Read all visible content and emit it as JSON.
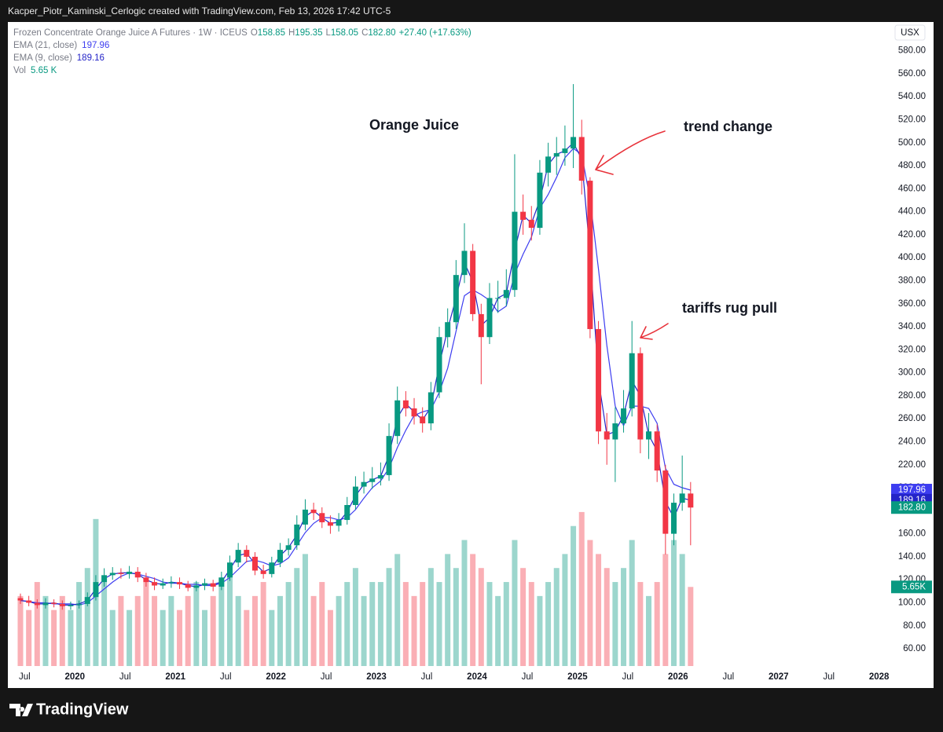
{
  "page": {
    "caption": "Kacper_Piotr_Kaminski_Cerlogic created with TradingView.com, Feb 13, 2026 17:42 UTC-5",
    "brand": "TradingView"
  },
  "chart_data": {
    "type": "candlestick",
    "title": "Frozen Concentrate Orange Juice A Futures · 1W · ICEUS",
    "legend_ohlc": [
      {
        "key": "O",
        "value": "158.85"
      },
      {
        "key": "H",
        "value": "195.35"
      },
      {
        "key": "L",
        "value": "158.05"
      },
      {
        "key": "C",
        "value": "182.80"
      }
    ],
    "change": "+27.40 (+17.63%)",
    "currency": "USX",
    "annotations": [
      "Orange Juice",
      "trend change",
      "tariffs rug pull"
    ],
    "up_color": "#089981",
    "down_color": "#f23645",
    "grid": false,
    "x": [
      "2019-06",
      "2019-07",
      "2019-08",
      "2019-09",
      "2019-10",
      "2019-11",
      "2019-12",
      "2020-01",
      "2020-02",
      "2020-03",
      "2020-04",
      "2020-05",
      "2020-06",
      "2020-07",
      "2020-08",
      "2020-09",
      "2020-10",
      "2020-11",
      "2020-12",
      "2021-01",
      "2021-02",
      "2021-03",
      "2021-04",
      "2021-05",
      "2021-06",
      "2021-07",
      "2021-08",
      "2021-09",
      "2021-10",
      "2021-11",
      "2021-12",
      "2022-01",
      "2022-02",
      "2022-03",
      "2022-04",
      "2022-05",
      "2022-06",
      "2022-07",
      "2022-08",
      "2022-09",
      "2022-10",
      "2022-11",
      "2022-12",
      "2023-01",
      "2023-02",
      "2023-03",
      "2023-04",
      "2023-05",
      "2023-06",
      "2023-07",
      "2023-08",
      "2023-09",
      "2023-10",
      "2023-11",
      "2023-12",
      "2024-01",
      "2024-02",
      "2024-03",
      "2024-04",
      "2024-05",
      "2024-06",
      "2024-07",
      "2024-08",
      "2024-09",
      "2024-10",
      "2024-11",
      "2024-12",
      "2025-01",
      "2025-02",
      "2025-03",
      "2025-04",
      "2025-05",
      "2025-06",
      "2025-07",
      "2025-08",
      "2025-09",
      "2025-10",
      "2025-11",
      "2025-12",
      "2026-01",
      "2026-02"
    ],
    "open": [
      104,
      102,
      100,
      98,
      100,
      99,
      97,
      98,
      99,
      105,
      118,
      124,
      126,
      125,
      127,
      122,
      118,
      115,
      117,
      118,
      116,
      113,
      115,
      117,
      114,
      122,
      135,
      146,
      140,
      128,
      125,
      135,
      146,
      150,
      168,
      181,
      178,
      170,
      167,
      172,
      185,
      201,
      205,
      208,
      211,
      245,
      276,
      269,
      262,
      256,
      283,
      331,
      344,
      385,
      406,
      351,
      331,
      365,
      365,
      372,
      440,
      433,
      426,
      474,
      488,
      491,
      495,
      505,
      467,
      338,
      249,
      242,
      256,
      269,
      317,
      242,
      249,
      215,
      160,
      187,
      195
    ],
    "high": [
      108,
      106,
      103,
      104,
      103,
      102,
      101,
      102,
      109,
      124,
      130,
      131,
      130,
      132,
      131,
      126,
      122,
      121,
      123,
      122,
      119,
      119,
      121,
      120,
      127,
      141,
      152,
      150,
      144,
      133,
      140,
      152,
      156,
      176,
      190,
      187,
      183,
      176,
      178,
      192,
      210,
      214,
      218,
      222,
      256,
      288,
      284,
      278,
      270,
      292,
      340,
      356,
      398,
      430,
      412,
      360,
      378,
      380,
      390,
      490,
      455,
      445,
      485,
      500,
      505,
      515,
      551,
      520,
      470,
      345,
      265,
      270,
      285,
      345,
      322,
      265,
      255,
      220,
      195,
      228,
      205
    ],
    "low": [
      99,
      97,
      95,
      95,
      96,
      94,
      94,
      95,
      97,
      102,
      114,
      120,
      121,
      121,
      118,
      114,
      111,
      112,
      113,
      112,
      110,
      110,
      111,
      110,
      111,
      119,
      131,
      135,
      124,
      121,
      122,
      131,
      141,
      146,
      163,
      172,
      165,
      160,
      162,
      168,
      181,
      195,
      199,
      202,
      206,
      238,
      262,
      255,
      248,
      250,
      278,
      322,
      338,
      378,
      345,
      290,
      325,
      352,
      358,
      366,
      420,
      415,
      420,
      462,
      472,
      480,
      478,
      455,
      330,
      238,
      220,
      205,
      248,
      262,
      230,
      225,
      205,
      142,
      150,
      180,
      150
    ],
    "close": [
      102,
      100,
      98,
      100,
      99,
      97,
      98,
      99,
      105,
      118,
      124,
      126,
      125,
      127,
      122,
      118,
      115,
      117,
      118,
      116,
      113,
      115,
      117,
      114,
      122,
      135,
      146,
      140,
      128,
      125,
      135,
      146,
      150,
      168,
      181,
      178,
      170,
      167,
      172,
      185,
      201,
      205,
      208,
      211,
      245,
      276,
      269,
      262,
      256,
      283,
      331,
      344,
      385,
      406,
      351,
      331,
      365,
      365,
      372,
      440,
      433,
      426,
      474,
      488,
      491,
      495,
      505,
      467,
      338,
      249,
      242,
      256,
      269,
      317,
      242,
      249,
      215,
      160,
      187,
      195,
      182.8
    ],
    "close_label": "182.80",
    "series": [
      {
        "name": "EMA (21, close)",
        "color": "#3d3df0",
        "values": [
          102,
          101,
          100,
          100,
          99,
          99,
          99,
          98,
          100,
          106,
          112,
          118,
          123,
          126,
          125,
          123,
          121,
          118,
          117,
          117,
          116,
          116,
          115,
          115,
          117,
          122,
          129,
          136,
          137,
          135,
          132,
          134,
          139,
          150,
          161,
          169,
          174,
          174,
          172,
          174,
          181,
          191,
          200,
          206,
          217,
          235,
          250,
          263,
          266,
          268,
          283,
          304,
          336,
          367,
          372,
          368,
          363,
          353,
          358,
          386,
          403,
          418,
          443,
          455,
          470,
          487,
          495,
          490,
          451,
          390,
          324,
          271,
          254,
          271,
          271,
          269,
          256,
          217,
          203,
          200,
          197.96
        ]
      },
      {
        "name": "EMA (9, close)",
        "color": "#2424c8",
        "values": [
          102,
          101,
          99,
          99,
          100,
          98,
          98,
          99,
          102,
          112,
          121,
          125,
          126,
          126,
          125,
          120,
          117,
          116,
          118,
          117,
          115,
          114,
          116,
          116,
          118,
          129,
          141,
          143,
          134,
          127,
          130,
          141,
          148,
          159,
          175,
          180,
          174,
          169,
          170,
          179,
          193,
          203,
          207,
          210,
          228,
          261,
          273,
          266,
          259,
          270,
          307,
          338,
          365,
          396,
          379,
          341,
          348,
          365,
          369,
          406,
          437,
          430,
          450,
          481,
          490,
          493,
          500,
          486,
          403,
          294,
          246,
          249,
          263,
          293,
          280,
          246,
          232,
          188,
          174,
          191,
          189.16
        ]
      }
    ],
    "volume": {
      "name": "Vol",
      "legend_label": "5.65 K",
      "axis_label": "5.65K",
      "values": [
        5,
        4,
        6,
        5,
        4,
        5,
        4,
        6,
        7,
        10.5,
        6,
        4,
        5,
        4,
        5,
        6,
        5,
        4,
        5,
        4,
        5,
        6,
        4,
        5,
        6,
        7,
        5,
        4,
        5,
        6,
        4,
        5,
        6,
        7,
        8,
        5,
        6,
        4,
        5,
        6,
        7,
        5,
        6,
        6,
        7,
        8,
        6,
        5,
        6,
        7,
        6,
        8,
        7,
        9,
        8,
        7,
        6,
        5,
        6,
        9,
        7,
        6,
        5,
        6,
        7,
        8,
        10,
        11,
        9,
        8,
        7,
        6,
        7,
        9,
        6,
        5,
        6,
        8,
        9,
        8,
        5.65
      ],
      "vlim": [
        0,
        46
      ]
    },
    "xlim": [
      "2019-05",
      "2028-03"
    ],
    "xticks": [
      {
        "value": "2019-07",
        "label": "Jul"
      },
      {
        "value": "2020-01",
        "label": "2020"
      },
      {
        "value": "2020-07",
        "label": "Jul"
      },
      {
        "value": "2021-01",
        "label": "2021"
      },
      {
        "value": "2021-07",
        "label": "Jul"
      },
      {
        "value": "2022-01",
        "label": "2022"
      },
      {
        "value": "2022-07",
        "label": "Jul"
      },
      {
        "value": "2023-01",
        "label": "2023"
      },
      {
        "value": "2023-07",
        "label": "Jul"
      },
      {
        "value": "2024-01",
        "label": "2024"
      },
      {
        "value": "2024-07",
        "label": "Jul"
      },
      {
        "value": "2025-01",
        "label": "2025"
      },
      {
        "value": "2025-07",
        "label": "Jul"
      },
      {
        "value": "2026-01",
        "label": "2026"
      },
      {
        "value": "2026-07",
        "label": "Jul"
      },
      {
        "value": "2027-01",
        "label": "2027"
      },
      {
        "value": "2027-07",
        "label": "Jul"
      },
      {
        "value": "2028-01",
        "label": "2028"
      }
    ],
    "ylim": [
      45,
      605
    ],
    "yticks": [
      {
        "value": 60,
        "label": "60.00"
      },
      {
        "value": 80,
        "label": "80.00"
      },
      {
        "value": 100,
        "label": "100.00"
      },
      {
        "value": 120,
        "label": "120.00"
      },
      {
        "value": 140,
        "label": "140.00"
      },
      {
        "value": 160,
        "label": "160.00"
      },
      {
        "value": 180,
        "label": "180.00"
      },
      {
        "value": 200,
        "label": "200.00"
      },
      {
        "value": 220,
        "label": "220.00"
      },
      {
        "value": 240,
        "label": "240.00"
      },
      {
        "value": 260,
        "label": "260.00"
      },
      {
        "value": 280,
        "label": "280.00"
      },
      {
        "value": 300,
        "label": "300.00"
      },
      {
        "value": 320,
        "label": "320.00"
      },
      {
        "value": 340,
        "label": "340.00"
      },
      {
        "value": 360,
        "label": "360.00"
      },
      {
        "value": 380,
        "label": "380.00"
      },
      {
        "value": 400,
        "label": "400.00"
      },
      {
        "value": 420,
        "label": "420.00"
      },
      {
        "value": 440,
        "label": "440.00"
      },
      {
        "value": 460,
        "label": "460.00"
      },
      {
        "value": 480,
        "label": "480.00"
      },
      {
        "value": 500,
        "label": "500.00"
      },
      {
        "value": 520,
        "label": "520.00"
      },
      {
        "value": 540,
        "label": "540.00"
      },
      {
        "value": 560,
        "label": "560.00"
      },
      {
        "value": 580,
        "label": "580.00"
      }
    ]
  }
}
